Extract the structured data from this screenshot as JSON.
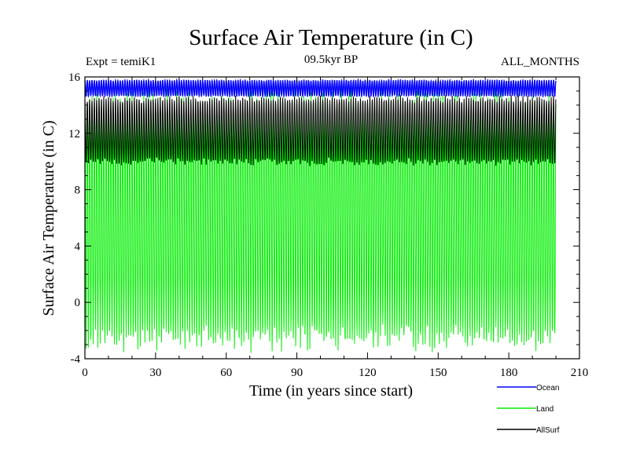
{
  "chart_data": {
    "type": "line",
    "title": "Surface Air Temperature (in C)",
    "subtitle_left": "Expt = temiK1",
    "subtitle_center": "09.5kyr BP",
    "subtitle_right": "ALL_MONTHS",
    "xlabel": "Time (in years since start)",
    "ylabel": "Surface Air Temperature (in C)",
    "xlim": [
      0,
      210
    ],
    "ylim": [
      -4,
      16
    ],
    "xticks": [
      0,
      30,
      60,
      90,
      120,
      150,
      180,
      210
    ],
    "yticks": [
      -4,
      0,
      4,
      8,
      12,
      16
    ],
    "grid": false,
    "legend_position": "bottom-right",
    "series": [
      {
        "name": "Ocean",
        "color": "#0000ff",
        "x_range": [
          0,
          200
        ],
        "seasonal_min": 14.6,
        "seasonal_max": 15.8
      },
      {
        "name": "Land",
        "color": "#00ee00",
        "x_range": [
          0,
          200
        ],
        "seasonal_min": -3.2,
        "seasonal_max": 14.9
      },
      {
        "name": "AllSurf",
        "color": "#000000",
        "x_range": [
          0,
          200
        ],
        "seasonal_min": 9.8,
        "seasonal_max": 14.6
      }
    ]
  }
}
